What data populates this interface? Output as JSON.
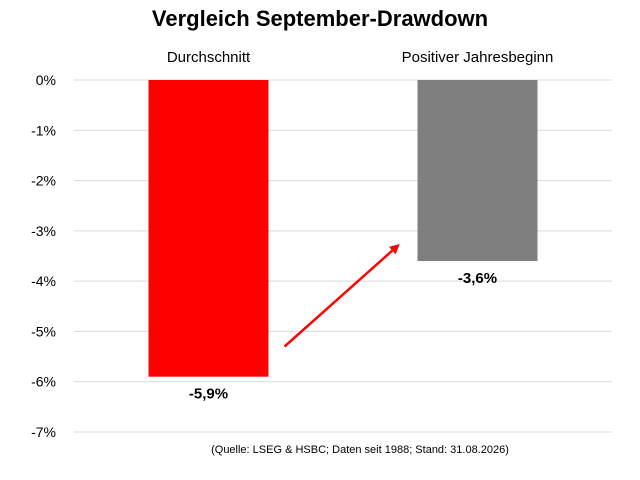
{
  "chart_data": {
    "type": "bar",
    "title": "Vergleich September-Drawdown",
    "categories": [
      "Durchschnitt",
      "Positiver Jahresbeginn"
    ],
    "values": [
      -5.9,
      -3.6
    ],
    "value_labels": [
      "-5,9%",
      "-3,6%"
    ],
    "bar_colors": [
      "#ff0000",
      "#7f7f7f"
    ],
    "ylim": [
      -7,
      0
    ],
    "y_ticks": [
      0,
      -1,
      -2,
      -3,
      -4,
      -5,
      -6,
      -7
    ],
    "y_tick_labels": [
      "0%",
      "-1%",
      "-2%",
      "-3%",
      "-4%",
      "-5%",
      "-6%",
      "-7%"
    ],
    "grid": true,
    "category_labels_position": "top",
    "annotation": {
      "type": "arrow",
      "color": "#ff0000",
      "from_category": "Durchschnitt",
      "to_category": "Positiver Jahresbeginn"
    },
    "source_note": "(Quelle: LSEG & HSBC; Daten seit 1988; Stand: 31.08.2026)"
  }
}
